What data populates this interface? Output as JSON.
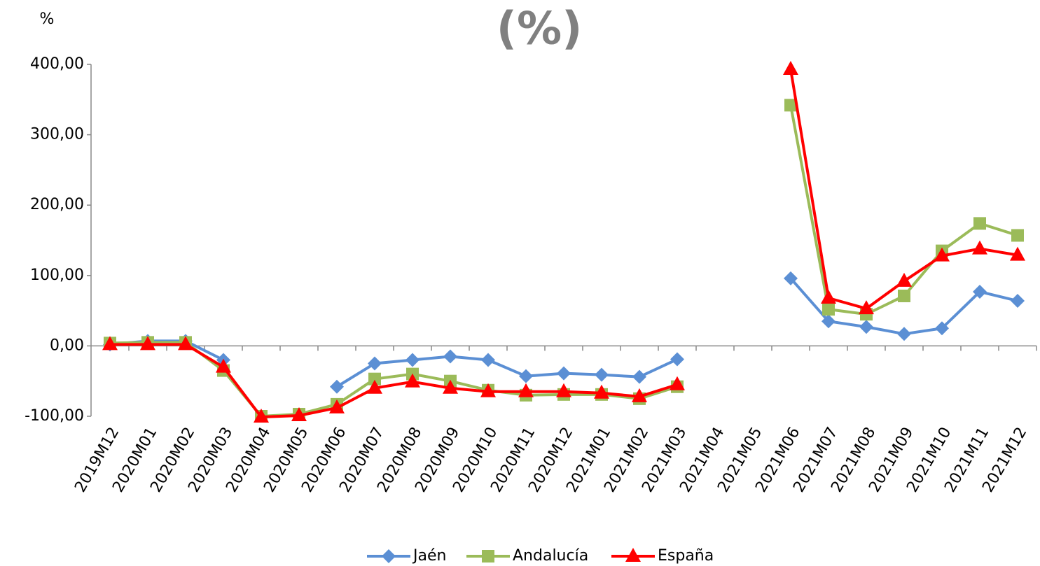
{
  "chart_data": {
    "type": "line",
    "title": "(%)",
    "y_label": "%",
    "categories": [
      "2019M12",
      "2020M01",
      "2020M02",
      "2020M03",
      "2020M04",
      "2020M05",
      "2020M06",
      "2020M07",
      "2020M08",
      "2020M09",
      "2020M10",
      "2020M11",
      "2020M12",
      "2021M01",
      "2021M02",
      "2021M03",
      "2021M04",
      "2021M05",
      "2021M06",
      "2021M07",
      "2021M08",
      "2021M09",
      "2021M10",
      "2021M11",
      "2021M12"
    ],
    "series": [
      {
        "name": "Jaén",
        "color": "#5b8fd4",
        "marker": "diamond",
        "values": [
          2,
          7,
          7,
          -20,
          null,
          null,
          -58,
          -25,
          -20,
          -15,
          -20,
          -43,
          -39,
          -41,
          -44,
          -19,
          null,
          null,
          96,
          35,
          27,
          17,
          25,
          77,
          64
        ]
      },
      {
        "name": "Andalucía",
        "color": "#9bbb59",
        "marker": "square",
        "values": [
          4,
          5,
          5,
          -35,
          -100,
          -97,
          -83,
          -47,
          -40,
          -50,
          -63,
          -70,
          -69,
          -69,
          -75,
          -58,
          null,
          null,
          342,
          52,
          45,
          71,
          135,
          174,
          157
        ]
      },
      {
        "name": "España",
        "color": "#ff0000",
        "marker": "triangle",
        "values": [
          2,
          2,
          2,
          -30,
          -101,
          -99,
          -88,
          -60,
          -51,
          -60,
          -65,
          -65,
          -65,
          -67,
          -72,
          -55,
          null,
          null,
          393,
          68,
          53,
          92,
          128,
          138,
          129
        ]
      }
    ],
    "ylim": [
      -100,
      400
    ],
    "yticks": [
      {
        "value": -100,
        "label": "-100,00"
      },
      {
        "value": 0,
        "label": "0,00"
      },
      {
        "value": 100,
        "label": "100,00"
      },
      {
        "value": 200,
        "label": "200,00"
      },
      {
        "value": 300,
        "label": "300,00"
      },
      {
        "value": 400,
        "label": "400,00"
      }
    ],
    "grid": false,
    "legend": "bottom"
  }
}
